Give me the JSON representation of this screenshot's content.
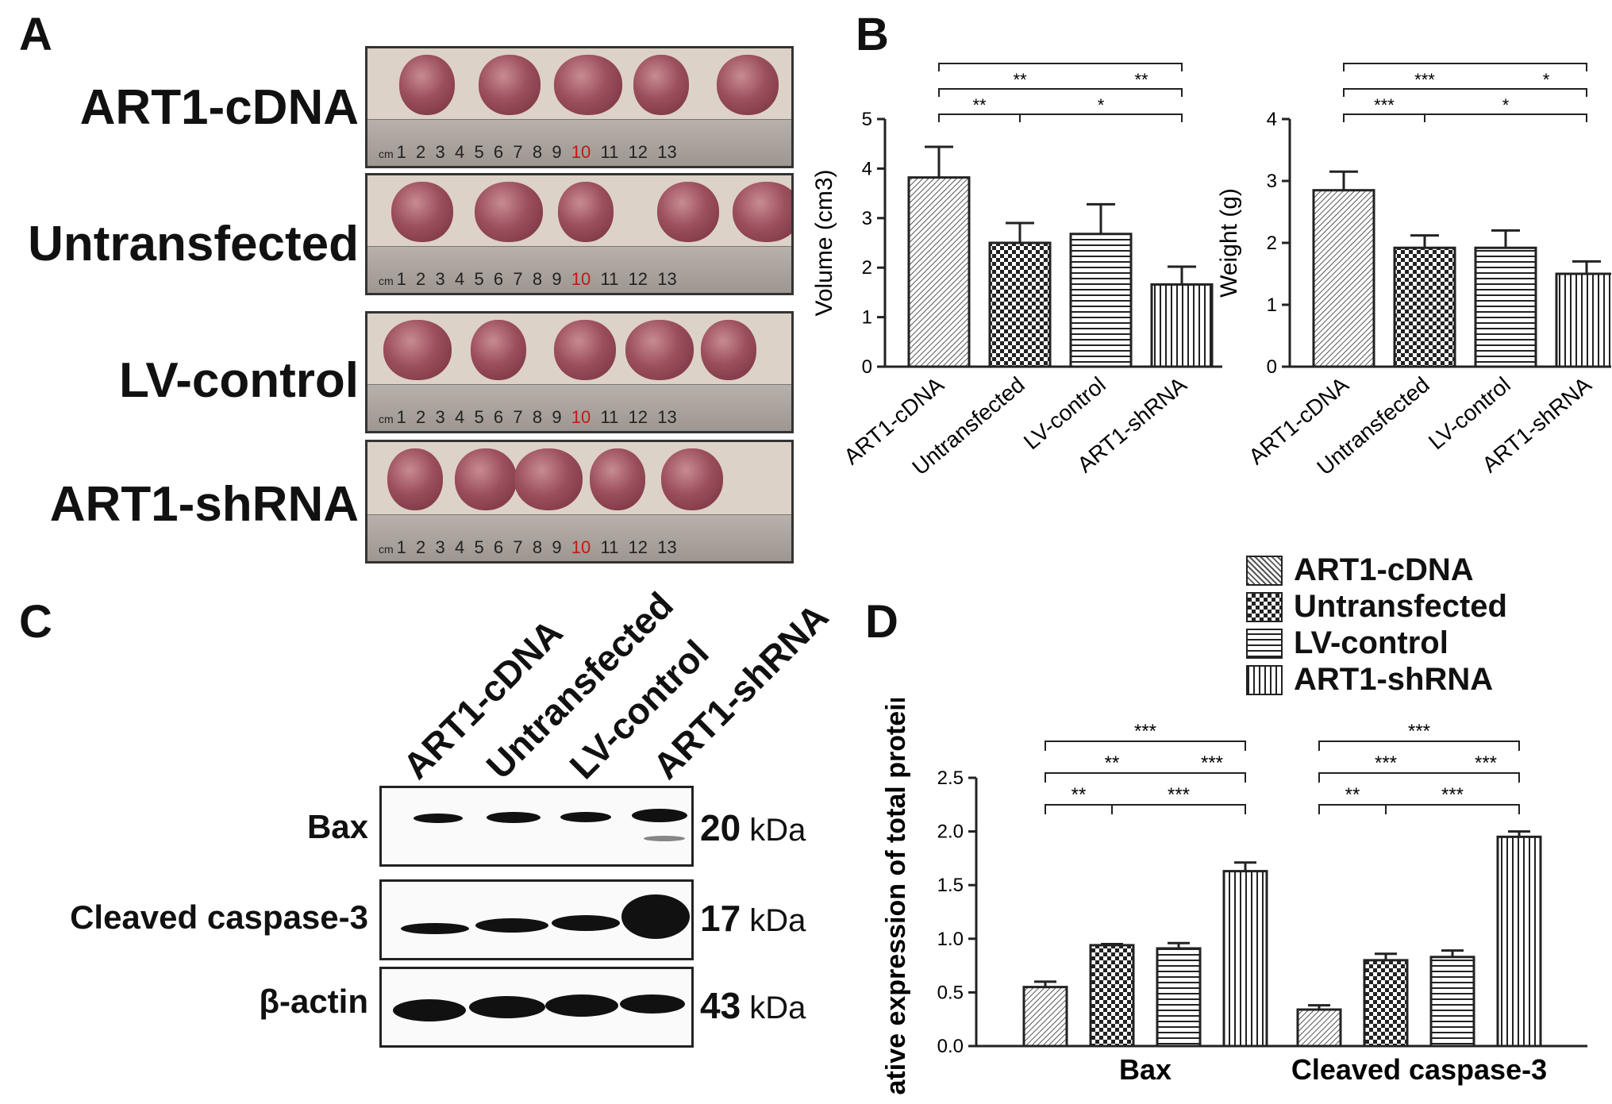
{
  "panels": {
    "a": "A",
    "b": "B",
    "c": "C",
    "d": "D"
  },
  "groups": [
    "ART1-cDNA",
    "Untransfected",
    "LV-control",
    "ART1-shRNA"
  ],
  "ruler": {
    "unit": "cm",
    "numbers": [
      "1",
      "2",
      "3",
      "4",
      "5",
      "6",
      "7",
      "8",
      "9",
      "10",
      "11",
      "12",
      "13"
    ]
  },
  "blot": {
    "rows": [
      {
        "label": "Bax",
        "kda": "20",
        "unit": "kDa"
      },
      {
        "label": "Cleaved caspase-3",
        "kda": "17",
        "unit": "kDa"
      },
      {
        "label": "β-actin",
        "kda": "43",
        "unit": "kDa"
      }
    ]
  },
  "colors": {
    "bar_stroke": "#222222",
    "text": "#111111",
    "red_marker": "#c21818"
  },
  "chart_data": [
    {
      "type": "bar",
      "panel": "B",
      "categories": [
        "ART1-cDNA",
        "Untransfected",
        "LV-control",
        "ART1-shRNA"
      ],
      "values": [
        3.82,
        2.5,
        2.68,
        1.66
      ],
      "errors": [
        0.62,
        0.4,
        0.6,
        0.36
      ],
      "ylabel": "Volume (cm3)",
      "ylim": [
        0,
        5
      ],
      "yticks": [
        "0",
        "1",
        "2",
        "3",
        "4",
        "5"
      ],
      "significance": [
        "**",
        "*",
        "**",
        "**",
        "***"
      ]
    },
    {
      "type": "bar",
      "panel": "B",
      "categories": [
        "ART1-cDNA",
        "Untransfected",
        "LV-control",
        "ART1-shRNA"
      ],
      "values": [
        2.85,
        1.92,
        1.92,
        1.5
      ],
      "errors": [
        0.3,
        0.2,
        0.28,
        0.2
      ],
      "ylabel": "Weight (g)",
      "ylim": [
        0,
        4
      ],
      "yticks": [
        "0",
        "1",
        "2",
        "3",
        "4"
      ],
      "significance": [
        "***",
        "*",
        "***",
        "*",
        "***"
      ]
    },
    {
      "type": "bar",
      "panel": "D",
      "categories": [
        "Bax",
        "Cleaved caspase-3"
      ],
      "series": [
        {
          "name": "ART1-cDNA",
          "values": [
            0.55,
            0.34
          ],
          "errors": [
            0.05,
            0.04
          ]
        },
        {
          "name": "Untransfected",
          "values": [
            0.94,
            0.8
          ],
          "errors": [
            0.01,
            0.06
          ]
        },
        {
          "name": "LV-control",
          "values": [
            0.91,
            0.83
          ],
          "errors": [
            0.05,
            0.06
          ]
        },
        {
          "name": "ART1-shRNA",
          "values": [
            1.63,
            1.95
          ],
          "errors": [
            0.08,
            0.05
          ]
        }
      ],
      "ylabel": "Relative expression of total protein",
      "ylim": [
        0,
        2.5
      ],
      "yticks": [
        "0.0",
        "0.5",
        "1.0",
        "1.5",
        "2.0",
        "2.5"
      ],
      "significance_bax": [
        "**",
        "***",
        "**",
        "***",
        "***"
      ],
      "significance_caspase": [
        "**",
        "***",
        "***",
        "***",
        "***"
      ],
      "legend": [
        "ART1-cDNA",
        "Untransfected",
        "LV-control",
        "ART1-shRNA"
      ]
    }
  ]
}
